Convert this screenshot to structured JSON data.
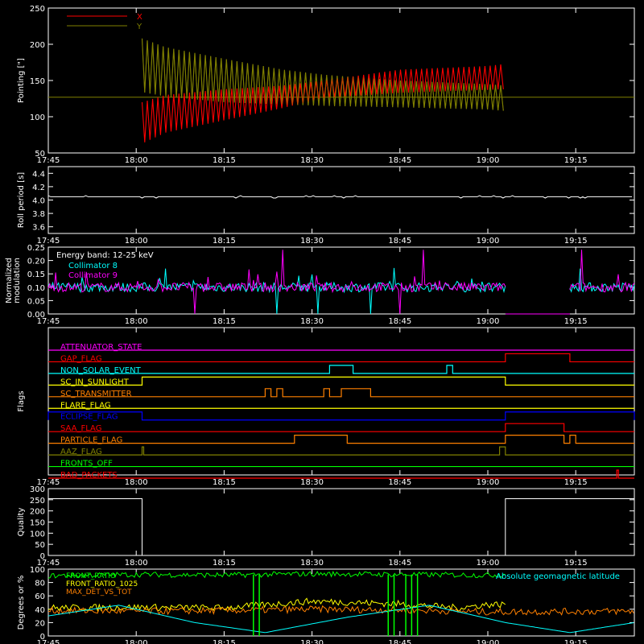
{
  "colors": {
    "background": "#000000",
    "axes": "#ffffff",
    "x": "#ff0000",
    "y": "#808000",
    "cyan": "#00ffff",
    "magenta": "#ff00ff",
    "green": "#00ff00",
    "yellow": "#ffff00",
    "orange": "#ff8000",
    "blue": "#0000ff",
    "red": "#ff0000",
    "white": "#ffffff"
  },
  "time_ticks": [
    "17:45",
    "18:00",
    "18:15",
    "18:30",
    "18:45",
    "19:00",
    "19:15"
  ],
  "chart_data": [
    {
      "type": "line",
      "ylabel": "Pointing [\"]",
      "xlim": [
        "17:45",
        "19:25"
      ],
      "ylim": [
        50,
        250
      ],
      "yticks": [
        50,
        100,
        150,
        200,
        250
      ],
      "legend": {
        "placement": "top-left",
        "entries": [
          "X",
          "Y"
        ]
      },
      "reference_line": 127,
      "series": [
        {
          "name": "X",
          "color": "#ff0000",
          "x": [
            "18:01",
            "18:05",
            "18:15",
            "18:25",
            "18:32",
            "18:45",
            "19:00",
            "19:03"
          ],
          "y_min": [
            63,
            78,
            95,
            112,
            126,
            133,
            137,
            138
          ],
          "y_max": [
            120,
            130,
            138,
            143,
            150,
            165,
            170,
            173
          ]
        },
        {
          "name": "Y",
          "color": "#808000",
          "x": [
            "18:01",
            "18:05",
            "18:15",
            "18:25",
            "18:32",
            "18:45",
            "19:00",
            "19:03"
          ],
          "y_min": [
            134,
            128,
            120,
            117,
            115,
            113,
            110,
            108
          ],
          "y_max": [
            208,
            196,
            180,
            165,
            158,
            150,
            145,
            143
          ]
        }
      ]
    },
    {
      "type": "line",
      "ylabel": "Roll period [s]",
      "xlim": [
        "17:45",
        "19:25"
      ],
      "ylim": [
        3.5,
        4.5
      ],
      "yticks": [
        3.6,
        3.8,
        4.0,
        4.2,
        4.4
      ],
      "series": [
        {
          "color": "#ffffff",
          "x": [
            "17:45",
            "18:00",
            "18:30",
            "18:45",
            "19:00",
            "19:25"
          ],
          "y": [
            4.05,
            4.05,
            4.05,
            4.04,
            4.05,
            4.05
          ]
        }
      ]
    },
    {
      "type": "line",
      "ylabel": "Normalized modulation",
      "xlim": [
        "17:45",
        "19:25"
      ],
      "ylim": [
        0,
        0.25
      ],
      "yticks": [
        0.0,
        0.05,
        0.1,
        0.15,
        0.2,
        0.25
      ],
      "annotation": "Energy band: 12-25 keV",
      "legend": {
        "placement": "top-left",
        "entries": [
          "Collimator 8",
          "Collimator 9"
        ]
      },
      "series": [
        {
          "name": "Collimator 8",
          "color": "#00ffff",
          "baseline": 0.1,
          "active": [
            [
              "17:45",
              "19:03"
            ],
            [
              "19:14",
              "19:25"
            ]
          ],
          "dips_to_zero": [
            "18:24",
            "18:31",
            "18:40"
          ]
        },
        {
          "name": "Collimator 9",
          "color": "#ff00ff",
          "baseline": 0.1,
          "active": [
            [
              "17:45",
              "19:03"
            ],
            [
              "19:14",
              "19:25"
            ]
          ],
          "dips_to_zero": [
            "18:10",
            "18:45"
          ],
          "spikes": [
            "18:25",
            "18:49",
            "19:16"
          ]
        }
      ]
    },
    {
      "type": "table",
      "ylabel": "Flags",
      "xlim": [
        "17:45",
        "19:25"
      ],
      "flags": [
        {
          "name": "ATTENUATOR_STATE",
          "color": "#ff00ff",
          "on": []
        },
        {
          "name": "GAP_FLAG",
          "color": "#ff0000",
          "on": [
            [
              "19:03",
              "19:14"
            ]
          ]
        },
        {
          "name": "NON_SOLAR_EVENT",
          "color": "#00ffff",
          "on": [
            [
              "18:33",
              "18:37"
            ],
            [
              "18:53",
              "18:54"
            ]
          ]
        },
        {
          "name": "SC_IN_SUNLIGHT",
          "color": "#ffff00",
          "on": [
            [
              "18:01",
              "19:03"
            ]
          ]
        },
        {
          "name": "SC_TRANSMITTER",
          "color": "#ff8000",
          "on": [
            [
              "18:22",
              "18:23"
            ],
            [
              "18:24",
              "18:25"
            ],
            [
              "18:32",
              "18:33"
            ],
            [
              "18:35",
              "18:40"
            ]
          ]
        },
        {
          "name": "FLARE_FLAG",
          "color": "#ffff00",
          "on": []
        },
        {
          "name": "ECLIPSE_FLAG",
          "color": "#0000ff",
          "on": [
            [
              "17:45",
              "18:01"
            ],
            [
              "19:03",
              "19:25"
            ]
          ]
        },
        {
          "name": "SAA_FLAG",
          "color": "#ff0000",
          "on": [
            [
              "19:03",
              "19:13"
            ]
          ]
        },
        {
          "name": "PARTICLE_FLAG",
          "color": "#ff8000",
          "on": [
            [
              "18:27",
              "18:36"
            ],
            [
              "19:03",
              "19:13"
            ],
            [
              "19:14",
              "19:15"
            ]
          ]
        },
        {
          "name": "AAZ_FLAG",
          "color": "#808000",
          "on": [
            [
              "18:01",
              "18:01"
            ],
            [
              "19:02",
              "19:03"
            ]
          ]
        },
        {
          "name": "FRONTS_OFF",
          "color": "#00ff00",
          "on": []
        },
        {
          "name": "BAD_PACKETS",
          "color": "#ff0000",
          "on": [
            [
              "19:22",
              "19:22"
            ]
          ]
        }
      ]
    },
    {
      "type": "line",
      "ylabel": "Quality",
      "xlim": [
        "17:45",
        "19:25"
      ],
      "ylim": [
        0,
        300
      ],
      "yticks": [
        0,
        50,
        100,
        150,
        200,
        250,
        300
      ],
      "series": [
        {
          "color": "#ffffff",
          "x": [
            "17:45",
            "18:01",
            "18:01",
            "19:03",
            "19:03",
            "19:25"
          ],
          "y": [
            255,
            255,
            0,
            0,
            255,
            255
          ]
        }
      ]
    },
    {
      "type": "line",
      "ylabel": "Degrees or %",
      "xlim": [
        "17:45",
        "19:25"
      ],
      "ylim": [
        0,
        100
      ],
      "yticks": [
        0,
        20,
        40,
        60,
        80,
        100
      ],
      "legend": {
        "placement": "top-left",
        "entries": [
          "FRONT_RATIO",
          "FRONT_RATIO_1025",
          "MAX_DET_VS_TOT"
        ]
      },
      "annotation": "Absolute geomagnetic latitude",
      "series": [
        {
          "name": "FRONT_RATIO",
          "color": "#00ff00",
          "x": [
            "17:45",
            "18:00",
            "18:15",
            "18:30",
            "18:45",
            "19:00",
            "19:03"
          ],
          "y": [
            90,
            92,
            91,
            93,
            92,
            91,
            92
          ]
        },
        {
          "name": "FRONT_RATIO_1025",
          "color": "#ffff00",
          "x": [
            "17:45",
            "18:00",
            "18:15",
            "18:30",
            "18:45",
            "18:55",
            "19:00",
            "19:03"
          ],
          "y": [
            42,
            43,
            42,
            52,
            48,
            42,
            47,
            47
          ]
        },
        {
          "name": "MAX_DET_VS_TOT",
          "color": "#ff8000",
          "x": [
            "17:45",
            "18:00",
            "18:15",
            "18:30",
            "18:45",
            "19:00",
            "19:25"
          ],
          "y": [
            38,
            37,
            38,
            40,
            39,
            36,
            37
          ]
        },
        {
          "name": "Absolute geomagnetic latitude",
          "color": "#00ffff",
          "x": [
            "17:45",
            "17:57",
            "18:10",
            "18:22",
            "18:36",
            "18:50",
            "19:03",
            "19:14",
            "19:25"
          ],
          "y": [
            30,
            46,
            20,
            5,
            28,
            46,
            20,
            5,
            20
          ]
        }
      ]
    }
  ]
}
